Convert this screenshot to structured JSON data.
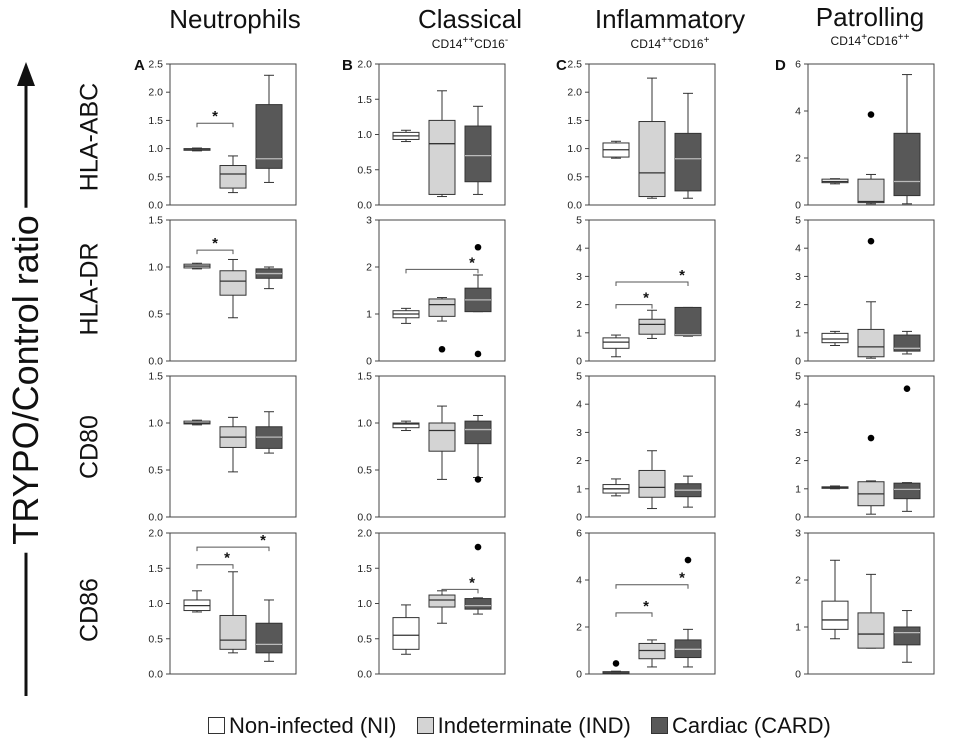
{
  "colors": {
    "NI": "#ffffff",
    "IND": "#d4d4d4",
    "CARD": "#585858",
    "stroke": "#333333"
  },
  "figure": {
    "y_axis_label": "TRYPO/Control ratio",
    "legend": [
      {
        "key": "NI",
        "label": "Non-infected (NI)"
      },
      {
        "key": "IND",
        "label": "Indeterminate (IND)"
      },
      {
        "key": "CARD",
        "label": "Cardiac (CARD)"
      }
    ],
    "columns": [
      {
        "title": "Neutrophils",
        "subtitle_main": "",
        "subtitle_sup1": "",
        "subtitle_mid": "",
        "subtitle_sup2": "",
        "letter": "A"
      },
      {
        "title": "Classical",
        "subtitle_main": "CD14",
        "subtitle_sup1": "++",
        "subtitle_mid": "CD16",
        "subtitle_sup2": "-",
        "letter": "B"
      },
      {
        "title": "Inflammatory",
        "subtitle_main": "CD14",
        "subtitle_sup1": "++",
        "subtitle_mid": "CD16",
        "subtitle_sup2": "+",
        "letter": "C"
      },
      {
        "title": "Patrolling",
        "subtitle_main": "CD14",
        "subtitle_sup1": "+",
        "subtitle_mid": "CD16",
        "subtitle_sup2": "++",
        "letter": "D"
      }
    ],
    "rows": [
      "HLA-ABC",
      "HLA-DR",
      "CD80",
      "CD86"
    ]
  },
  "chart_data": [
    {
      "type": "box",
      "row": "HLA-ABC",
      "column": "Neutrophils",
      "ylim": [
        0,
        2.5
      ],
      "yticks": [
        "0.0",
        "0.5",
        "1.0",
        "1.5",
        "2.0",
        "2.5"
      ],
      "groups": [
        {
          "group": "NI",
          "min": 0.96,
          "q1": 0.97,
          "median": 0.99,
          "q3": 1.0,
          "max": 1.01,
          "outliers": []
        },
        {
          "group": "IND",
          "min": 0.22,
          "q1": 0.3,
          "median": 0.55,
          "q3": 0.7,
          "max": 0.87,
          "outliers": []
        },
        {
          "group": "CARD",
          "min": 0.4,
          "q1": 0.65,
          "median": 0.82,
          "q3": 1.78,
          "max": 2.3,
          "outliers": []
        }
      ],
      "significance": [
        {
          "from": "NI",
          "to": "IND",
          "y": 1.45,
          "label": "*"
        }
      ]
    },
    {
      "type": "box",
      "row": "HLA-ABC",
      "column": "Classical",
      "ylim": [
        0,
        2.0
      ],
      "yticks": [
        "0.0",
        "0.5",
        "1.0",
        "1.5",
        "2.0"
      ],
      "groups": [
        {
          "group": "NI",
          "min": 0.9,
          "q1": 0.93,
          "median": 0.98,
          "q3": 1.03,
          "max": 1.06,
          "outliers": []
        },
        {
          "group": "IND",
          "min": 0.12,
          "q1": 0.15,
          "median": 0.87,
          "q3": 1.2,
          "max": 1.62,
          "outliers": []
        },
        {
          "group": "CARD",
          "min": 0.15,
          "q1": 0.33,
          "median": 0.7,
          "q3": 1.12,
          "max": 1.4,
          "outliers": []
        }
      ],
      "significance": []
    },
    {
      "type": "box",
      "row": "HLA-ABC",
      "column": "Inflammatory",
      "ylim": [
        0,
        2.5
      ],
      "yticks": [
        "0.0",
        "0.5",
        "1.0",
        "1.5",
        "2.0",
        "2.5"
      ],
      "groups": [
        {
          "group": "NI",
          "min": 0.83,
          "q1": 0.85,
          "median": 0.98,
          "q3": 1.1,
          "max": 1.13,
          "outliers": []
        },
        {
          "group": "IND",
          "min": 0.12,
          "q1": 0.15,
          "median": 0.57,
          "q3": 1.48,
          "max": 2.25,
          "outliers": []
        },
        {
          "group": "CARD",
          "min": 0.12,
          "q1": 0.25,
          "median": 0.82,
          "q3": 1.27,
          "max": 1.98,
          "outliers": []
        }
      ],
      "significance": []
    },
    {
      "type": "box",
      "row": "HLA-ABC",
      "column": "Patrolling",
      "ylim": [
        0,
        6
      ],
      "yticks": [
        "0",
        "2",
        "4",
        "6"
      ],
      "groups": [
        {
          "group": "NI",
          "min": 0.9,
          "q1": 0.95,
          "median": 1.0,
          "q3": 1.1,
          "max": 1.12,
          "outliers": []
        },
        {
          "group": "IND",
          "min": 0.05,
          "q1": 0.1,
          "median": 0.15,
          "q3": 1.1,
          "max": 1.3,
          "outliers": [
            3.85
          ]
        },
        {
          "group": "CARD",
          "min": 0.05,
          "q1": 0.4,
          "median": 1.0,
          "q3": 3.05,
          "max": 5.55,
          "outliers": []
        }
      ],
      "significance": []
    },
    {
      "type": "box",
      "row": "HLA-DR",
      "column": "Neutrophils",
      "ylim": [
        0,
        1.5
      ],
      "yticks": [
        "0.0",
        "0.5",
        "1.0",
        "1.5"
      ],
      "groups": [
        {
          "group": "NI",
          "min": 0.98,
          "q1": 0.99,
          "median": 1.01,
          "q3": 1.03,
          "max": 1.04,
          "outliers": []
        },
        {
          "group": "IND",
          "min": 0.46,
          "q1": 0.7,
          "median": 0.85,
          "q3": 0.96,
          "max": 1.08,
          "outliers": []
        },
        {
          "group": "CARD",
          "min": 0.77,
          "q1": 0.88,
          "median": 0.93,
          "q3": 0.98,
          "max": 1.0,
          "outliers": []
        }
      ],
      "significance": [
        {
          "from": "NI",
          "to": "IND",
          "y": 1.18,
          "label": "*"
        }
      ]
    },
    {
      "type": "box",
      "row": "HLA-DR",
      "column": "Classical",
      "ylim": [
        0,
        3
      ],
      "yticks": [
        "0",
        "1",
        "2",
        "3"
      ],
      "groups": [
        {
          "group": "NI",
          "min": 0.8,
          "q1": 0.92,
          "median": 1.0,
          "q3": 1.07,
          "max": 1.12,
          "outliers": []
        },
        {
          "group": "IND",
          "min": 0.85,
          "q1": 0.95,
          "median": 1.2,
          "q3": 1.32,
          "max": 1.35,
          "outliers": [
            0.25
          ]
        },
        {
          "group": "CARD",
          "min": 1.05,
          "q1": 1.05,
          "median": 1.3,
          "q3": 1.55,
          "max": 1.83,
          "outliers": [
            2.42,
            0.15
          ]
        }
      ],
      "significance": [
        {
          "from": "NI",
          "to": "CARD",
          "y": 1.95,
          "label": "*"
        }
      ]
    },
    {
      "type": "box",
      "row": "HLA-DR",
      "column": "Inflammatory",
      "ylim": [
        0,
        5
      ],
      "yticks": [
        "0",
        "1",
        "2",
        "3",
        "4",
        "5"
      ],
      "groups": [
        {
          "group": "NI",
          "min": 0.15,
          "q1": 0.45,
          "median": 0.67,
          "q3": 0.82,
          "max": 0.92,
          "outliers": []
        },
        {
          "group": "IND",
          "min": 0.8,
          "q1": 0.95,
          "median": 1.3,
          "q3": 1.48,
          "max": 1.8,
          "outliers": []
        },
        {
          "group": "CARD",
          "min": 0.88,
          "q1": 0.9,
          "median": 0.93,
          "q3": 1.9,
          "max": 1.9,
          "outliers": []
        }
      ],
      "significance": [
        {
          "from": "NI",
          "to": "IND",
          "y": 2.0,
          "label": "*"
        },
        {
          "from": "NI",
          "to": "CARD",
          "y": 2.8,
          "label": "*"
        }
      ]
    },
    {
      "type": "box",
      "row": "HLA-DR",
      "column": "Patrolling",
      "ylim": [
        0,
        5
      ],
      "yticks": [
        "0",
        "1",
        "2",
        "3",
        "4",
        "5"
      ],
      "groups": [
        {
          "group": "NI",
          "min": 0.55,
          "q1": 0.65,
          "median": 0.78,
          "q3": 0.98,
          "max": 1.05,
          "outliers": []
        },
        {
          "group": "IND",
          "min": 0.1,
          "q1": 0.15,
          "median": 0.5,
          "q3": 1.12,
          "max": 2.1,
          "outliers": [
            4.25
          ]
        },
        {
          "group": "CARD",
          "min": 0.25,
          "q1": 0.35,
          "median": 0.45,
          "q3": 0.92,
          "max": 1.05,
          "outliers": []
        }
      ],
      "significance": []
    },
    {
      "type": "box",
      "row": "CD80",
      "column": "Neutrophils",
      "ylim": [
        0,
        1.5
      ],
      "yticks": [
        "0.0",
        "0.5",
        "1.0",
        "1.5"
      ],
      "groups": [
        {
          "group": "NI",
          "min": 0.98,
          "q1": 0.99,
          "median": 1.0,
          "q3": 1.02,
          "max": 1.03,
          "outliers": []
        },
        {
          "group": "IND",
          "min": 0.48,
          "q1": 0.74,
          "median": 0.85,
          "q3": 0.96,
          "max": 1.06,
          "outliers": []
        },
        {
          "group": "CARD",
          "min": 0.68,
          "q1": 0.73,
          "median": 0.85,
          "q3": 0.96,
          "max": 1.12,
          "outliers": []
        }
      ],
      "significance": []
    },
    {
      "type": "box",
      "row": "CD80",
      "column": "Classical",
      "ylim": [
        0,
        1.5
      ],
      "yticks": [
        "0.0",
        "0.5",
        "1.0",
        "1.5"
      ],
      "groups": [
        {
          "group": "NI",
          "min": 0.92,
          "q1": 0.95,
          "median": 0.99,
          "q3": 1.0,
          "max": 1.02,
          "outliers": []
        },
        {
          "group": "IND",
          "min": 0.4,
          "q1": 0.7,
          "median": 0.92,
          "q3": 1.0,
          "max": 1.18,
          "outliers": []
        },
        {
          "group": "CARD",
          "min": 0.42,
          "q1": 0.78,
          "median": 0.93,
          "q3": 1.02,
          "max": 1.08,
          "outliers": [
            0.4
          ]
        }
      ],
      "significance": []
    },
    {
      "type": "box",
      "row": "CD80",
      "column": "Inflammatory",
      "ylim": [
        0,
        5
      ],
      "yticks": [
        "0",
        "1",
        "2",
        "3",
        "4",
        "5"
      ],
      "groups": [
        {
          "group": "NI",
          "min": 0.75,
          "q1": 0.85,
          "median": 1.0,
          "q3": 1.15,
          "max": 1.35,
          "outliers": []
        },
        {
          "group": "IND",
          "min": 0.3,
          "q1": 0.7,
          "median": 1.05,
          "q3": 1.65,
          "max": 2.35,
          "outliers": []
        },
        {
          "group": "CARD",
          "min": 0.35,
          "q1": 0.72,
          "median": 0.95,
          "q3": 1.18,
          "max": 1.45,
          "outliers": []
        }
      ],
      "significance": []
    },
    {
      "type": "box",
      "row": "CD80",
      "column": "Patrolling",
      "ylim": [
        0,
        5
      ],
      "yticks": [
        "0",
        "1",
        "2",
        "3",
        "4",
        "5"
      ],
      "groups": [
        {
          "group": "NI",
          "min": 1.0,
          "q1": 1.02,
          "median": 1.05,
          "q3": 1.07,
          "max": 1.1,
          "outliers": []
        },
        {
          "group": "IND",
          "min": 0.1,
          "q1": 0.4,
          "median": 0.82,
          "q3": 1.25,
          "max": 1.28,
          "outliers": [
            2.8
          ]
        },
        {
          "group": "CARD",
          "min": 0.2,
          "q1": 0.65,
          "median": 0.98,
          "q3": 1.2,
          "max": 1.22,
          "outliers": [
            4.55
          ]
        }
      ],
      "significance": []
    },
    {
      "type": "box",
      "row": "CD86",
      "column": "Neutrophils",
      "ylim": [
        0,
        2.0
      ],
      "yticks": [
        "0.0",
        "0.5",
        "1.0",
        "1.5",
        "2.0"
      ],
      "groups": [
        {
          "group": "NI",
          "min": 0.88,
          "q1": 0.9,
          "median": 0.97,
          "q3": 1.05,
          "max": 1.18,
          "outliers": []
        },
        {
          "group": "IND",
          "min": 0.3,
          "q1": 0.35,
          "median": 0.48,
          "q3": 0.83,
          "max": 1.45,
          "outliers": []
        },
        {
          "group": "CARD",
          "min": 0.18,
          "q1": 0.3,
          "median": 0.42,
          "q3": 0.72,
          "max": 1.05,
          "outliers": []
        }
      ],
      "significance": [
        {
          "from": "NI",
          "to": "IND",
          "y": 1.55,
          "label": "*"
        },
        {
          "from": "NI",
          "to": "CARD",
          "y": 1.8,
          "label": "*"
        }
      ]
    },
    {
      "type": "box",
      "row": "CD86",
      "column": "Classical",
      "ylim": [
        0,
        2.0
      ],
      "yticks": [
        "0.0",
        "0.5",
        "1.0",
        "1.5",
        "2.0"
      ],
      "groups": [
        {
          "group": "NI",
          "min": 0.28,
          "q1": 0.35,
          "median": 0.55,
          "q3": 0.8,
          "max": 0.98,
          "outliers": []
        },
        {
          "group": "IND",
          "min": 0.72,
          "q1": 0.95,
          "median": 1.05,
          "q3": 1.12,
          "max": 1.18,
          "outliers": []
        },
        {
          "group": "CARD",
          "min": 0.85,
          "q1": 0.92,
          "median": 0.97,
          "q3": 1.07,
          "max": 1.08,
          "outliers": [
            1.8
          ]
        }
      ],
      "significance": [
        {
          "from": "IND",
          "to": "CARD",
          "y": 1.2,
          "label": "*"
        }
      ]
    },
    {
      "type": "box",
      "row": "CD86",
      "column": "Inflammatory",
      "ylim": [
        0,
        6
      ],
      "yticks": [
        "0",
        "2",
        "4",
        "6"
      ],
      "groups": [
        {
          "group": "NI",
          "min": 0.0,
          "q1": 0.02,
          "median": 0.05,
          "q3": 0.1,
          "max": 0.12,
          "outliers": [
            0.45
          ]
        },
        {
          "group": "IND",
          "min": 0.3,
          "q1": 0.65,
          "median": 1.0,
          "q3": 1.3,
          "max": 1.45,
          "outliers": []
        },
        {
          "group": "CARD",
          "min": 0.3,
          "q1": 0.7,
          "median": 1.05,
          "q3": 1.45,
          "max": 1.9,
          "outliers": [
            4.85
          ]
        }
      ],
      "significance": [
        {
          "from": "NI",
          "to": "IND",
          "y": 2.6,
          "label": "*"
        },
        {
          "from": "NI",
          "to": "CARD",
          "y": 3.8,
          "label": "*"
        }
      ]
    },
    {
      "type": "box",
      "row": "CD86",
      "column": "Patrolling",
      "ylim": [
        0,
        3
      ],
      "yticks": [
        "0",
        "1",
        "2",
        "3"
      ],
      "groups": [
        {
          "group": "NI",
          "min": 0.75,
          "q1": 0.95,
          "median": 1.15,
          "q3": 1.55,
          "max": 2.42,
          "outliers": []
        },
        {
          "group": "IND",
          "min": 0.55,
          "q1": 0.55,
          "median": 0.85,
          "q3": 1.3,
          "max": 2.12,
          "outliers": []
        },
        {
          "group": "CARD",
          "min": 0.25,
          "q1": 0.62,
          "median": 0.88,
          "q3": 1.0,
          "max": 1.35,
          "outliers": []
        }
      ],
      "significance": []
    }
  ]
}
